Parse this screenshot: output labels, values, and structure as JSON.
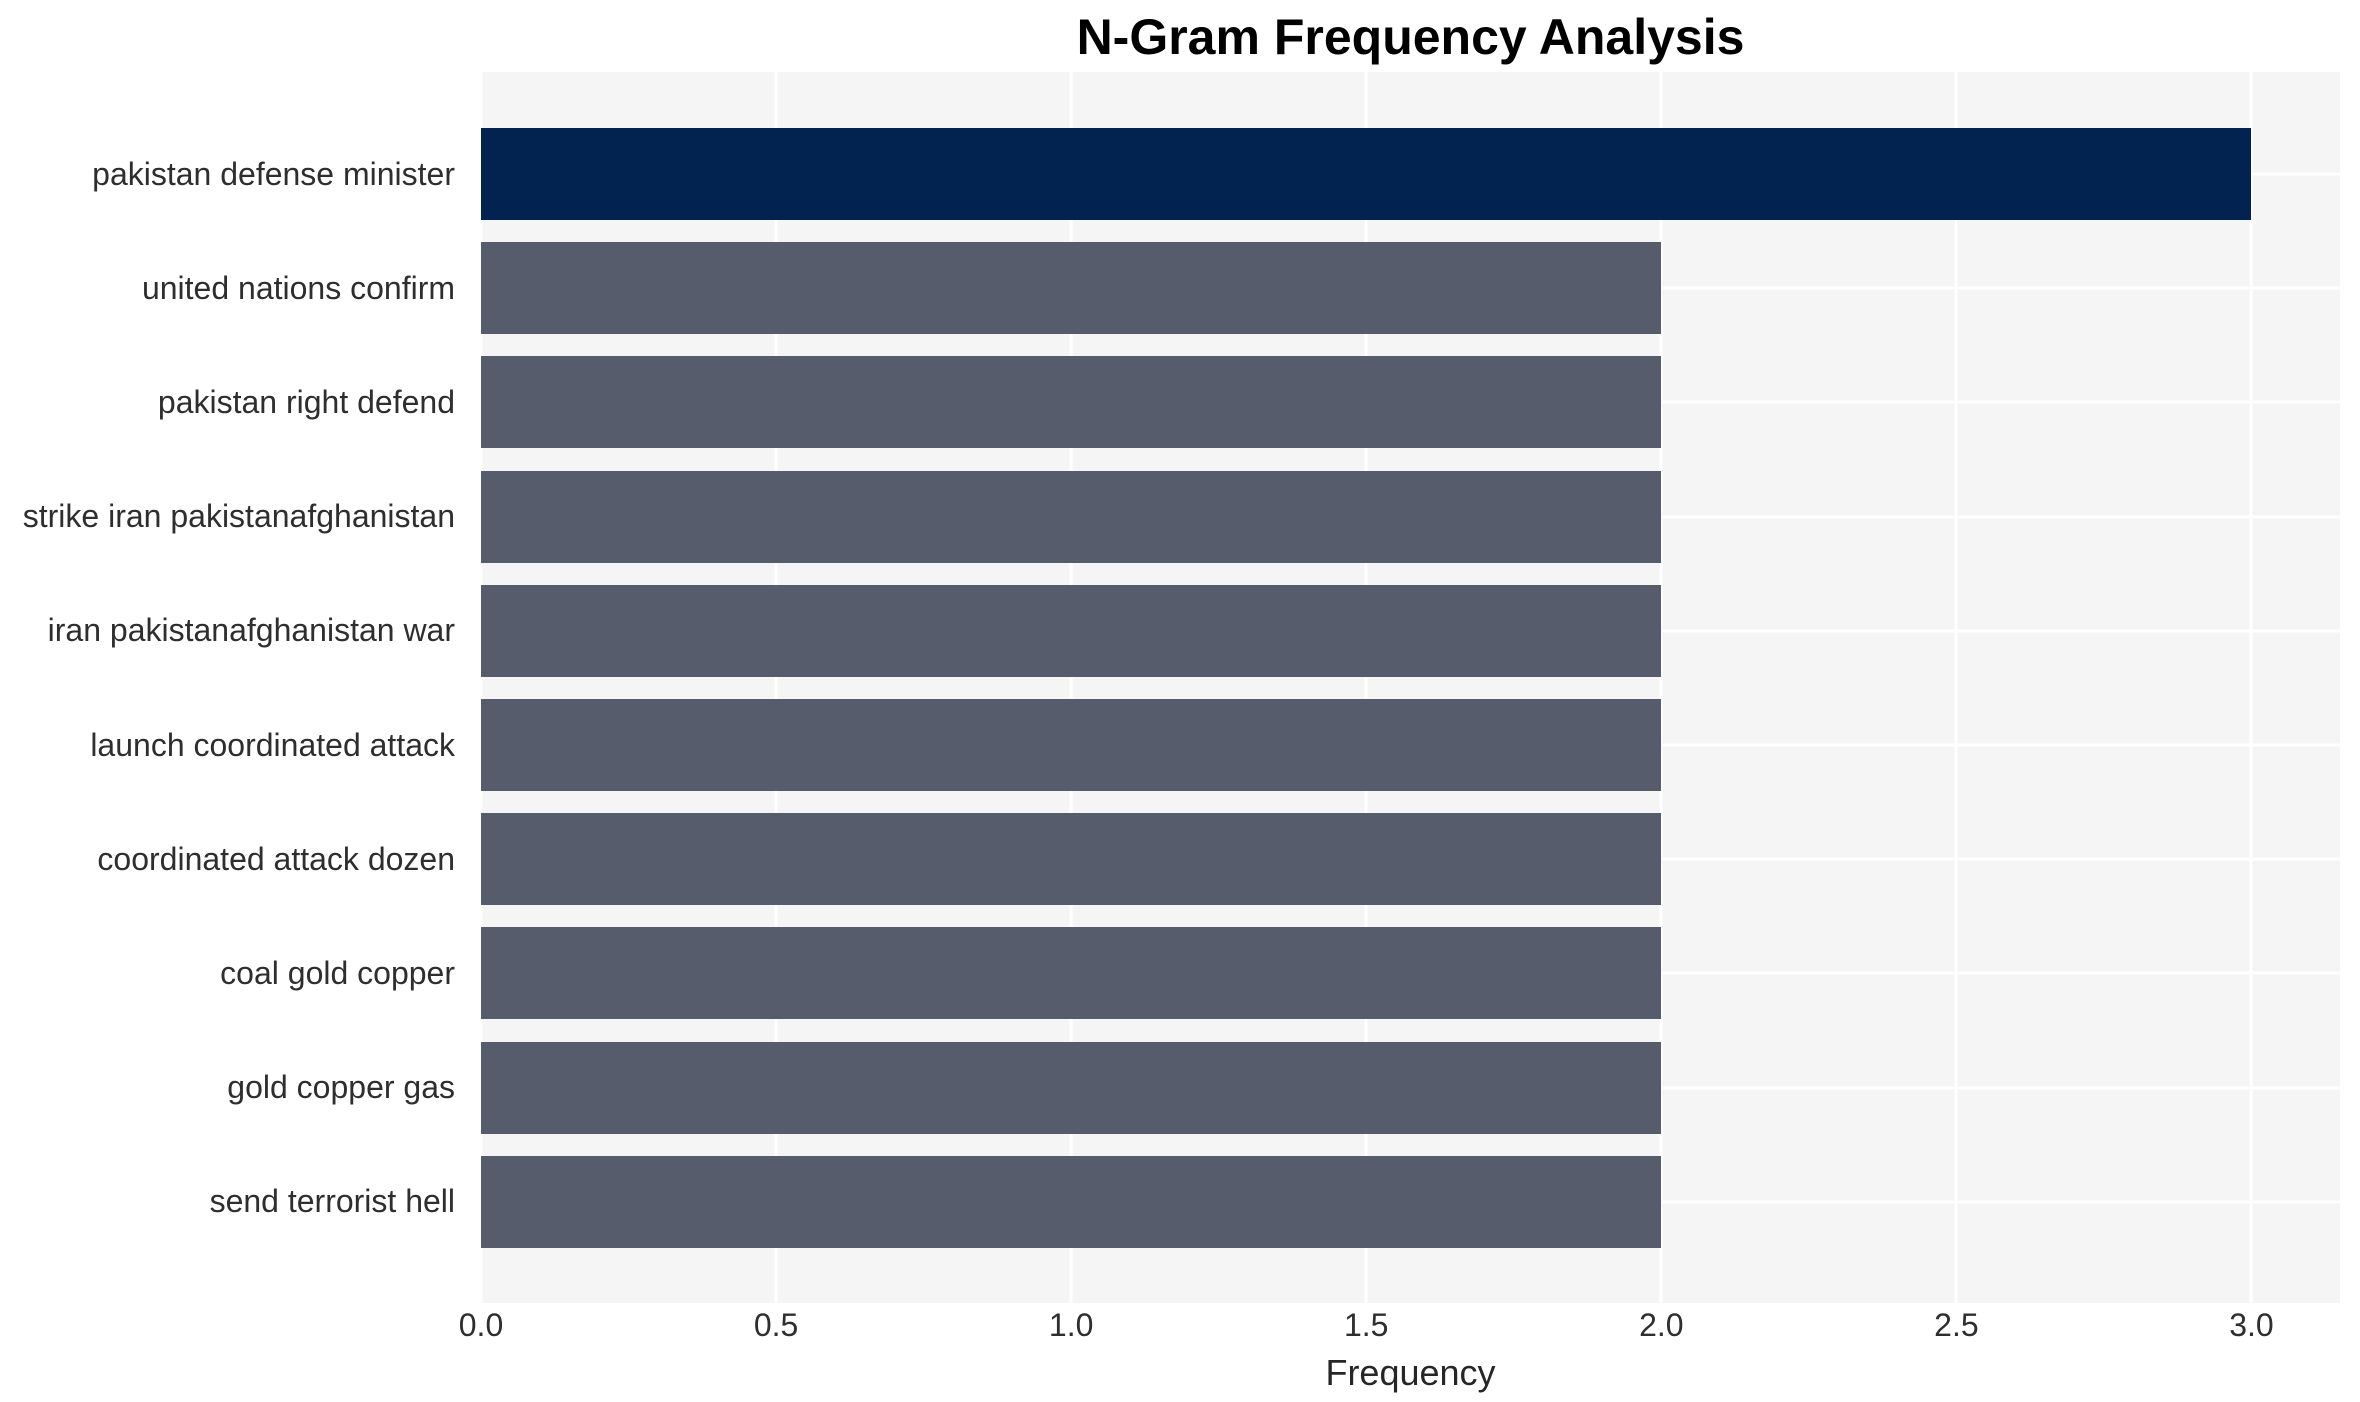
{
  "chart_data": {
    "type": "bar",
    "orientation": "horizontal",
    "title": "N-Gram Frequency Analysis",
    "xlabel": "Frequency",
    "ylabel": "",
    "categories": [
      "pakistan defense minister",
      "united nations confirm",
      "pakistan right defend",
      "strike iran pakistanafghanistan",
      "iran pakistanafghanistan war",
      "launch coordinated attack",
      "coordinated attack dozen",
      "coal gold copper",
      "gold copper gas",
      "send terrorist hell"
    ],
    "values": [
      3,
      2,
      2,
      2,
      2,
      2,
      2,
      2,
      2,
      2
    ],
    "xlim": [
      0,
      3.15
    ],
    "xticks": [
      0.0,
      0.5,
      1.0,
      1.5,
      2.0,
      2.5,
      3.0
    ],
    "xtick_labels": [
      "0.0",
      "0.5",
      "1.0",
      "1.5",
      "2.0",
      "2.5",
      "3.0"
    ],
    "bar_colors": [
      "#022350",
      "#565c6b",
      "#565c6b",
      "#565c6b",
      "#565c6b",
      "#565c6b",
      "#565c6b",
      "#565c6b",
      "#565c6b",
      "#565c6b"
    ],
    "colors": {
      "highlight": "#022350",
      "base": "#565c6b",
      "plot_background": "#f5f5f6",
      "gridline": "#ffffff",
      "title_text": "#000000",
      "label_text": "#2e2e2e"
    },
    "grid": true,
    "legend": false
  }
}
